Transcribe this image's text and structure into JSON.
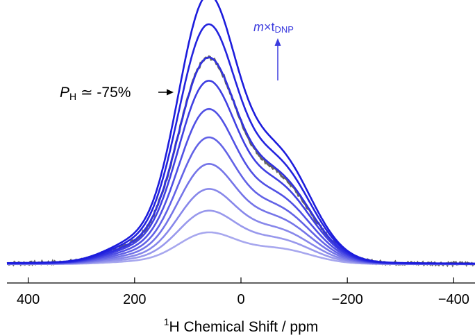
{
  "chart_data": {
    "type": "line",
    "title": "",
    "xlabel_sup": "1",
    "xlabel_main": "H Chemical Shift / ppm",
    "xlim": [
      440,
      -440
    ],
    "x_reversed": true,
    "xticks": [
      400,
      200,
      0,
      -200,
      -400
    ],
    "xtick_labels": [
      "400",
      "200",
      "0",
      "−200",
      "−400"
    ],
    "y_axis_visible": false,
    "grid": false,
    "peak_positions_ppm": [
      65,
      -70
    ],
    "series": [
      {
        "peak1": 0.19,
        "peak2": 0.15,
        "color": "#a7a7ee"
      },
      {
        "peak1": 0.32,
        "peak2": 0.24,
        "color": "#9898ec"
      },
      {
        "peak1": 0.45,
        "peak2": 0.33,
        "color": "#8787ea"
      },
      {
        "peak1": 0.6,
        "peak2": 0.43,
        "color": "#7474e8"
      },
      {
        "peak1": 0.76,
        "peak2": 0.53,
        "color": "#6262e6"
      },
      {
        "peak1": 0.93,
        "peak2": 0.64,
        "color": "#5050e4"
      },
      {
        "peak1": 1.1,
        "peak2": 0.75,
        "color": "#3f3fe2"
      },
      {
        "peak1": 1.24,
        "peak2": 0.84,
        "color": "#3030e0"
      },
      {
        "peak1": 1.44,
        "peak2": 0.96,
        "color": "#2323de"
      },
      {
        "peak1": 1.62,
        "peak2": 1.06,
        "color": "#1c1cdc"
      }
    ],
    "reference_series": {
      "peak1": 1.24,
      "peak2": 0.82,
      "color": "#646464"
    },
    "annotations": {
      "polarization": {
        "symbol": "P",
        "subscript": "H",
        "text": " ≃ -75%"
      },
      "arrow_label": {
        "prefix": "m",
        "middle": "×t",
        "subscript": "DNP",
        "color": "#3b3bde"
      }
    }
  }
}
